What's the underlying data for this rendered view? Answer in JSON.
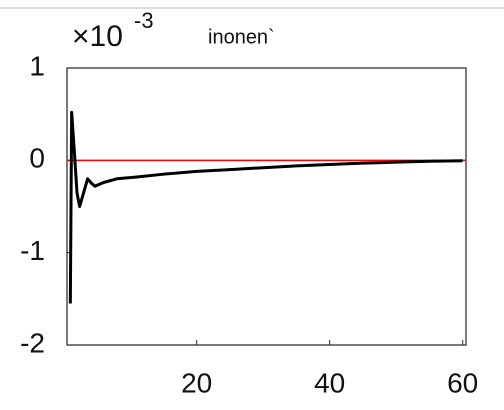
{
  "chart_data": {
    "type": "line",
    "title": "inonen`",
    "y_multiplier": "×10",
    "y_multiplier_exponent": "-3",
    "x": [
      1,
      1.2,
      1.6,
      2.0,
      2.4,
      3.0,
      3.6,
      4.2,
      4.7,
      6,
      8,
      11,
      15,
      20,
      25,
      30,
      35,
      40,
      45,
      50,
      55,
      60
    ],
    "series": [
      {
        "color": "#000000",
        "values": [
          -1.55,
          0.52,
          0.1,
          -0.35,
          -0.5,
          -0.35,
          -0.2,
          -0.25,
          -0.28,
          -0.24,
          -0.2,
          -0.18,
          -0.15,
          -0.12,
          -0.1,
          -0.08,
          -0.06,
          -0.045,
          -0.03,
          -0.02,
          -0.01,
          -0.005
        ]
      }
    ],
    "reference_line": 0,
    "reference_color": "#ff0000",
    "xlim": [
      0.5,
      60.5
    ],
    "ylim": [
      -2,
      1
    ],
    "xticks": [
      20,
      40,
      60
    ],
    "yticks": [
      1,
      0,
      -1,
      -2
    ]
  }
}
